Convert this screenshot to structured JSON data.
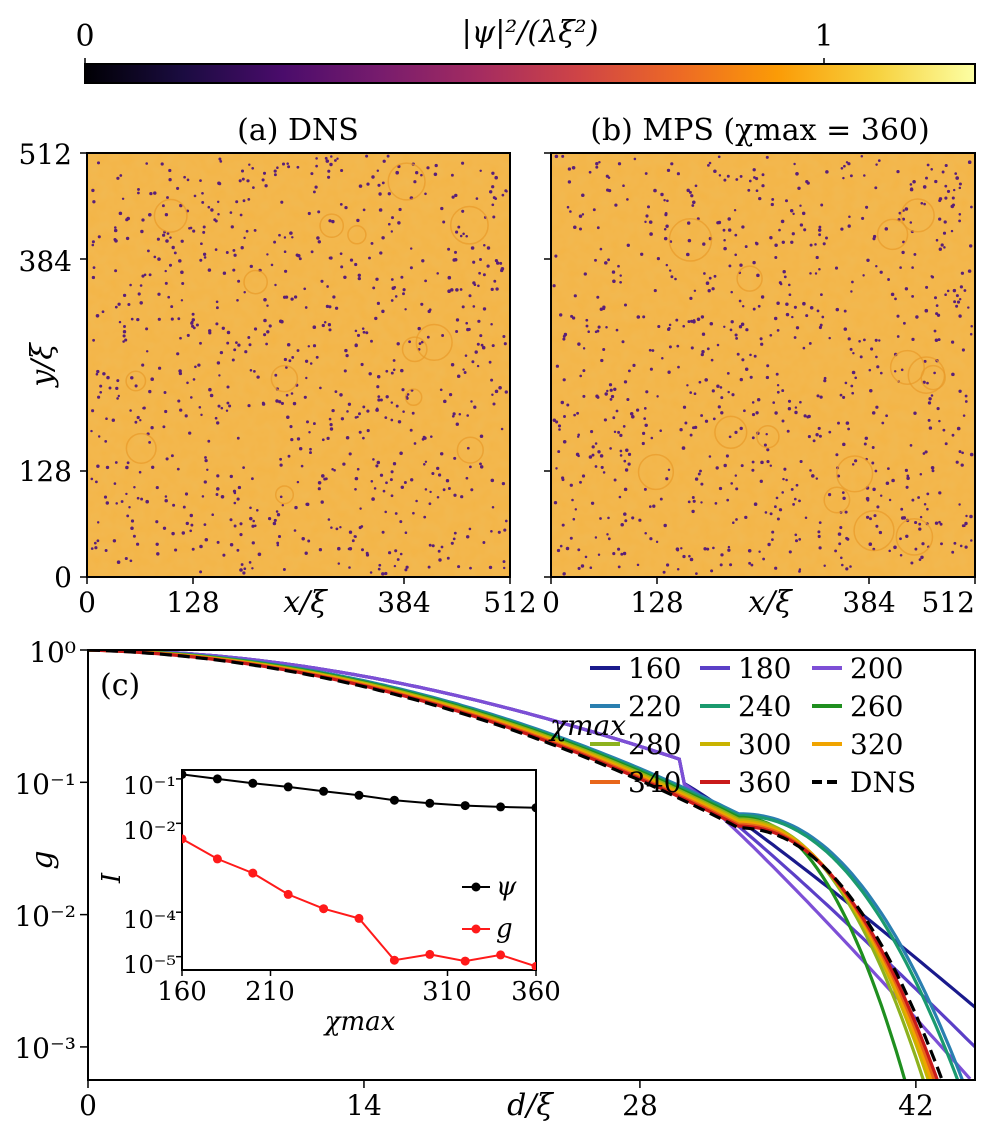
{
  "colorbar": {
    "label": "|ψ|²/(λξ²)",
    "tick_low": "0",
    "tick_high": "1",
    "range": [
      0,
      1.2
    ],
    "colormap": [
      "#000004",
      "#1b0c41",
      "#4a0c6b",
      "#781c6d",
      "#a52c60",
      "#cf4446",
      "#ed6925",
      "#fb9b06",
      "#f7d13d",
      "#fcffa4"
    ]
  },
  "panel_a": {
    "title": "(a) DNS",
    "xlabel": "x/ξ",
    "ylabel": "y/ξ",
    "xticks": [
      "0",
      "128",
      "384",
      "512"
    ],
    "yticks": [
      "0",
      "128",
      "384",
      "512"
    ],
    "background": "#f4b445",
    "vortex_color": "#5a1f78"
  },
  "panel_b": {
    "title": "(b) MPS (χmax = 360)",
    "xticks": [
      "0",
      "128",
      "384",
      "512"
    ],
    "background": "#f4b445",
    "vortex_color": "#5a1f78"
  },
  "chart_data": {
    "type": "line",
    "panel_label": "(c)",
    "xlabel": "d/ξ",
    "ylabel": "g",
    "xlim": [
      0,
      45
    ],
    "ylim_log10": [
      -3.25,
      0
    ],
    "xticks": [
      "0",
      "14",
      "28",
      "42"
    ],
    "yticks": [
      "10⁰",
      "10⁻¹",
      "10⁻²",
      "10⁻³"
    ],
    "legend_title": "χmax",
    "series": [
      {
        "name": "160",
        "color": "#1a1a8c",
        "end_d": 45,
        "end_log10": -2.7,
        "sharp": false
      },
      {
        "name": "180",
        "color": "#5b3fc7",
        "end_d": 45,
        "end_log10": -3.0,
        "sharp": false
      },
      {
        "name": "200",
        "color": "#7d4fd6",
        "end_d": 44.8,
        "end_log10": -3.25,
        "sharp": false
      },
      {
        "name": "220",
        "color": "#2a7fb0",
        "end_d": 44.5,
        "end_log10": -3.25,
        "sharp": true
      },
      {
        "name": "240",
        "color": "#1a9a6e",
        "end_d": 44.3,
        "end_log10": -3.25,
        "sharp": true
      },
      {
        "name": "260",
        "color": "#1f8f1f",
        "end_d": 41.6,
        "end_log10": -3.25,
        "sharp": true
      },
      {
        "name": "280",
        "color": "#8db21e",
        "end_d": 42.6,
        "end_log10": -3.25,
        "sharp": true
      },
      {
        "name": "300",
        "color": "#c9b300",
        "end_d": 42.9,
        "end_log10": -3.25,
        "sharp": true
      },
      {
        "name": "320",
        "color": "#f0a400",
        "end_d": 43.1,
        "end_log10": -3.25,
        "sharp": true
      },
      {
        "name": "340",
        "color": "#e8661a",
        "end_d": 43.3,
        "end_log10": -3.25,
        "sharp": true
      },
      {
        "name": "360",
        "color": "#c91a1a",
        "end_d": 43.5,
        "end_log10": -3.25,
        "sharp": true
      },
      {
        "name": "DNS",
        "color": "#000000",
        "end_d": 43.8,
        "end_log10": -3.25,
        "sharp": true,
        "dashed": true
      }
    ],
    "inset": {
      "xlabel": "χmax",
      "ylabel": "I",
      "xlim": [
        160,
        360
      ],
      "ylim_log10": [
        -5.3,
        -0.8
      ],
      "xticks": [
        "160",
        "210",
        "310",
        "360"
      ],
      "yticks": [
        "10⁻¹",
        "10⁻²",
        "10⁻⁴",
        "10⁻⁵"
      ],
      "series": [
        {
          "name": "ψ",
          "color": "#000000",
          "x": [
            160,
            180,
            200,
            220,
            240,
            260,
            280,
            300,
            320,
            340,
            360
          ],
          "log10": [
            -0.9,
            -1.0,
            -1.1,
            -1.18,
            -1.28,
            -1.37,
            -1.48,
            -1.55,
            -1.6,
            -1.63,
            -1.65
          ]
        },
        {
          "name": "g",
          "color": "#ff1a1a",
          "x": [
            160,
            180,
            200,
            220,
            240,
            260,
            280,
            300,
            320,
            340,
            360
          ],
          "log10": [
            -2.35,
            -2.8,
            -3.12,
            -3.6,
            -3.92,
            -4.14,
            -5.08,
            -4.95,
            -5.1,
            -4.96,
            -5.22
          ]
        }
      ]
    }
  }
}
